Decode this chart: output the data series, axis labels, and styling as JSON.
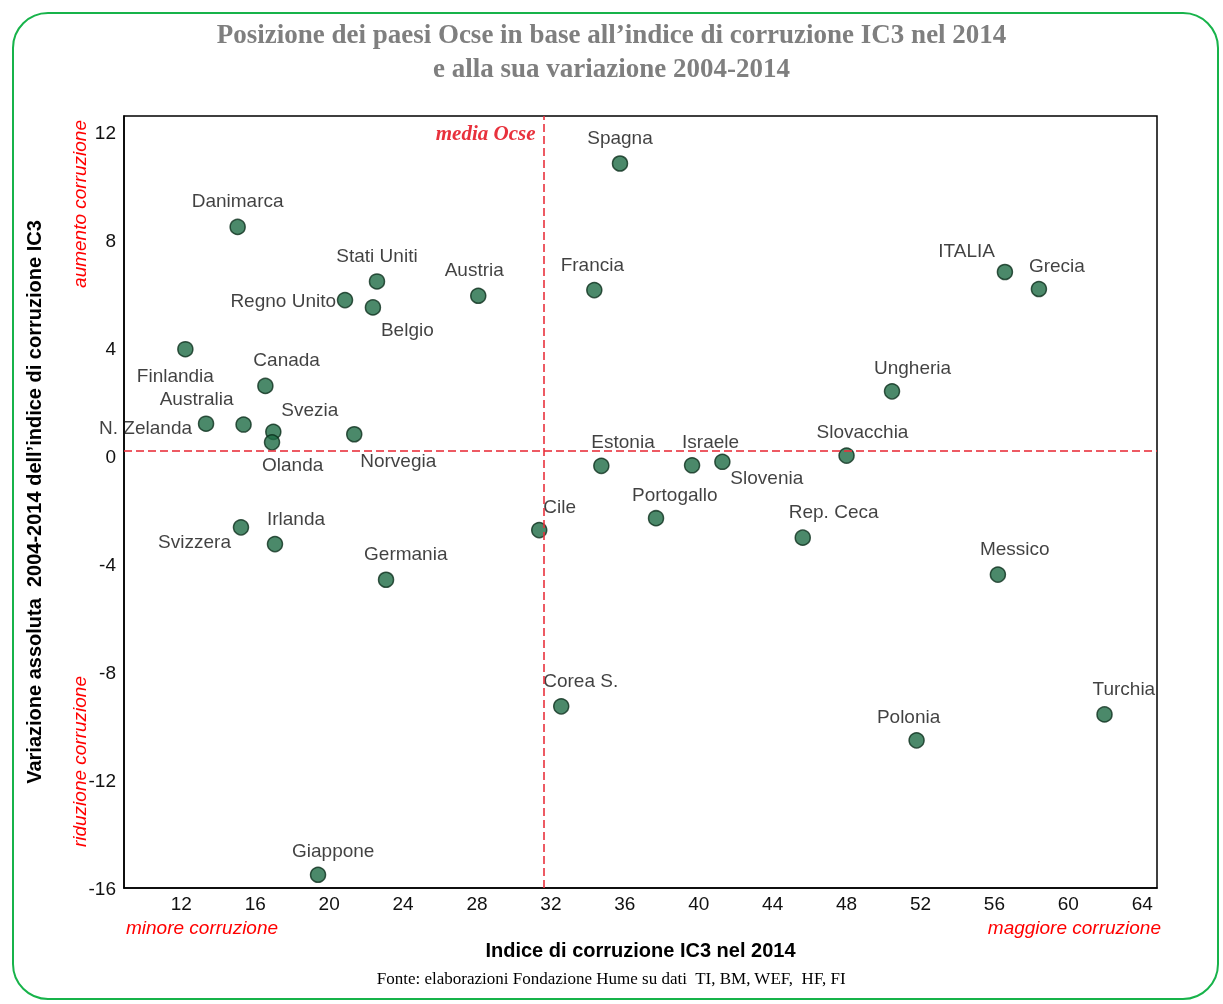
{
  "chart_data": {
    "type": "scatter",
    "title": "Posizione dei paesi Ocse in base all’indice di corruzione IC3 nel 2014\ne alla sua variazione 2004-2014",
    "xlabel": "Indice di corruzione IC3 nel 2014",
    "ylabel": "Variazione assoluta  2004-2014 dell’indice di corruzione IC3",
    "x": [
      15.05,
      22.59,
      20.86,
      22.37,
      28.07,
      34.35,
      35.74,
      12.22,
      16.55,
      15.37,
      13.34,
      16.98,
      16.91,
      21.36,
      34.73,
      31.37,
      37.69,
      15.23,
      17.07,
      23.08,
      39.64,
      41.28,
      48.0,
      45.63,
      50.46,
      56.57,
      58.41,
      56.19,
      32.56,
      51.79,
      61.96,
      19.4
    ],
    "series": [
      {
        "color": "#1e6b45",
        "values": [
          8.49,
          6.47,
          5.78,
          5.51,
          5.94,
          6.15,
          10.84,
          3.96,
          2.6,
          1.17,
          1.2,
          0.9,
          0.51,
          0.81,
          -0.36,
          -2.74,
          -2.3,
          -2.64,
          -3.26,
          -4.58,
          -0.34,
          -0.21,
          0.02,
          -3.02,
          2.4,
          6.82,
          6.19,
          -4.39,
          -9.27,
          -10.53,
          -9.57,
          -15.51
        ]
      }
    ],
    "xlim": [
      8.9,
      64.8
    ],
    "xticks": [
      12,
      16,
      20,
      24,
      28,
      32,
      36,
      40,
      44,
      48,
      52,
      56,
      60,
      64
    ],
    "ylim": [
      -16,
      12.6
    ],
    "yticks": [
      -16,
      -12,
      -8,
      -4,
      0,
      4,
      8,
      12
    ],
    "marker": "circle",
    "grid": false,
    "ref_lines": [
      {
        "axis": "x",
        "value": 31.6,
        "label": "media Ocse",
        "color": "#e8313c",
        "line_style": "dashed"
      },
      {
        "axis": "y",
        "value": 0.2,
        "color": "#e8313c",
        "line_style": "dashed"
      }
    ],
    "annotations": [
      "aumento corruzione",
      "riduzione corruzione",
      "minore corruzione",
      "maggiore corruzione",
      "Fonte: elaborazioni Fondazione Hume su dati  TI, BM, WEF,  HF, FI",
      {
        "text": "Danimarca",
        "x": 15.05,
        "y": 8.49
      },
      {
        "text": "Stati Uniti",
        "x": 22.59,
        "y": 6.47
      },
      {
        "text": "Regno Unito",
        "x": 20.86,
        "y": 5.78
      },
      {
        "text": "Belgio",
        "x": 22.37,
        "y": 5.51
      },
      {
        "text": "Austria",
        "x": 28.07,
        "y": 5.94
      },
      {
        "text": "Francia",
        "x": 34.35,
        "y": 6.15
      },
      {
        "text": "Spagna",
        "x": 35.74,
        "y": 10.84
      },
      {
        "text": "Finlandia",
        "x": 12.22,
        "y": 3.96
      },
      {
        "text": "Canada",
        "x": 16.55,
        "y": 2.6
      },
      {
        "text": "Australia",
        "x": 15.37,
        "y": 1.17
      },
      {
        "text": "N. Zelanda",
        "x": 13.34,
        "y": 1.2
      },
      {
        "text": "Svezia",
        "x": 16.98,
        "y": 0.9
      },
      {
        "text": "Olanda",
        "x": 16.91,
        "y": 0.51
      },
      {
        "text": "Norvegia",
        "x": 21.36,
        "y": 0.81
      },
      {
        "text": "Estonia",
        "x": 34.73,
        "y": -0.36
      },
      {
        "text": "Cile",
        "x": 31.37,
        "y": -2.74
      },
      {
        "text": "Portogallo",
        "x": 37.69,
        "y": -2.3
      },
      {
        "text": "Svizzera",
        "x": 15.23,
        "y": -2.64
      },
      {
        "text": "Irlanda",
        "x": 17.07,
        "y": -3.26
      },
      {
        "text": "Germania",
        "x": 23.08,
        "y": -4.58
      },
      {
        "text": "Israele",
        "x": 39.64,
        "y": -0.34
      },
      {
        "text": "Slovenia",
        "x": 41.28,
        "y": -0.21
      },
      {
        "text": "Slovacchia",
        "x": 48.0,
        "y": 0.02
      },
      {
        "text": "Rep. Ceca",
        "x": 45.63,
        "y": -3.02
      },
      {
        "text": "Ungheria",
        "x": 50.46,
        "y": 2.4
      },
      {
        "text": "ITALIA",
        "x": 56.57,
        "y": 6.82
      },
      {
        "text": "Grecia",
        "x": 58.41,
        "y": 6.19
      },
      {
        "text": "Messico",
        "x": 56.19,
        "y": -4.39
      },
      {
        "text": "Corea S.",
        "x": 32.56,
        "y": -9.27
      },
      {
        "text": "Polonia",
        "x": 51.79,
        "y": -10.53
      },
      {
        "text": "Turchia",
        "x": 61.96,
        "y": -9.57
      },
      {
        "text": "Giappone",
        "x": 19.4,
        "y": -15.51
      }
    ]
  }
}
